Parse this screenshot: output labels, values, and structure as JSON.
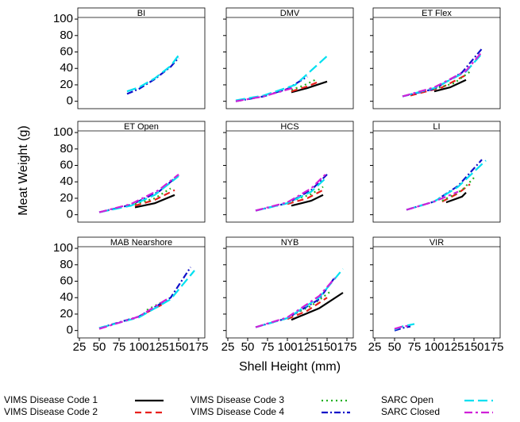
{
  "chart_data": {
    "type": "line",
    "x_label": "Shell Height (mm)",
    "y_label": "Meat Weight (g)",
    "xlim": [
      23,
      183
    ],
    "xticks": [
      25,
      50,
      75,
      100,
      125,
      150,
      175
    ],
    "ylim": [
      -9,
      102
    ],
    "yticks": [
      0,
      20,
      40,
      60,
      80,
      100
    ],
    "legend": [
      {
        "name": "VIMS Disease Code 1",
        "color": "#000000",
        "dash": "solid"
      },
      {
        "name": "VIMS Disease Code 2",
        "color": "#e8201c",
        "dash": "dashed"
      },
      {
        "name": "VIMS Disease Code 3",
        "color": "#22b022",
        "dash": "dotted"
      },
      {
        "name": "VIMS Disease Code 4",
        "color": "#1010c8",
        "dash": "dotdash"
      },
      {
        "name": "SARC Open",
        "color": "#00e0f0",
        "dash": "longdash"
      },
      {
        "name": "SARC Closed",
        "color": "#d020d8",
        "dash": "dashdot"
      }
    ],
    "panels": [
      {
        "title": "BI",
        "series": [
          {
            "name": "VIMS Disease Code 4",
            "x": [
              85,
              100,
              120,
              140,
              150
            ],
            "values": [
              9,
              15,
              27,
              42,
              53
            ]
          },
          {
            "name": "SARC Open",
            "x": [
              85,
              100,
              120,
              140,
              150
            ],
            "values": [
              12,
              17,
              28,
              43,
              56
            ]
          }
        ]
      },
      {
        "title": "DMV",
        "series": [
          {
            "name": "VIMS Disease Code 1",
            "x": [
              105,
              125,
              150
            ],
            "values": [
              11,
              16,
              24
            ]
          },
          {
            "name": "VIMS Disease Code 2",
            "x": [
              105,
              125,
              140
            ],
            "values": [
              12,
              18,
              24
            ]
          },
          {
            "name": "VIMS Disease Code 3",
            "x": [
              105,
              120,
              135
            ],
            "values": [
              14,
              19,
              26
            ]
          },
          {
            "name": "VIMS Disease Code 4",
            "x": [
              35,
              70,
              100,
              125
            ],
            "values": [
              0,
              6,
              15,
              30
            ]
          },
          {
            "name": "SARC Open",
            "x": [
              35,
              70,
              110,
              150
            ],
            "values": [
              1,
              7,
              20,
              55
            ]
          },
          {
            "name": "SARC Closed",
            "x": [
              35,
              70,
              110
            ],
            "values": [
              0,
              6,
              17
            ]
          }
        ]
      },
      {
        "title": "ET Flex",
        "series": [
          {
            "name": "VIMS Disease Code 1",
            "x": [
              100,
              120,
              140
            ],
            "values": [
              12,
              17,
              26
            ]
          },
          {
            "name": "VIMS Disease Code 2",
            "x": [
              70,
              110,
              140
            ],
            "values": [
              7,
              17,
              32
            ]
          },
          {
            "name": "VIMS Disease Code 3",
            "x": [
              100,
              125,
              145
            ],
            "values": [
              15,
              22,
              36
            ]
          },
          {
            "name": "VIMS Disease Code 4",
            "x": [
              60,
              100,
              135,
              160
            ],
            "values": [
              6,
              15,
              35,
              64
            ]
          },
          {
            "name": "SARC Open",
            "x": [
              60,
              100,
              140,
              160
            ],
            "values": [
              6,
              16,
              36,
              58
            ]
          },
          {
            "name": "SARC Closed",
            "x": [
              60,
              100,
              140,
              160
            ],
            "values": [
              6,
              17,
              37,
              60
            ]
          }
        ]
      },
      {
        "title": "ET Open",
        "series": [
          {
            "name": "VIMS Disease Code 1",
            "x": [
              95,
              120,
              145
            ],
            "values": [
              9,
              14,
              24
            ]
          },
          {
            "name": "VIMS Disease Code 2",
            "x": [
              95,
              120,
              145
            ],
            "values": [
              11,
              18,
              30
            ]
          },
          {
            "name": "VIMS Disease Code 3",
            "x": [
              95,
              120,
              140
            ],
            "values": [
              13,
              20,
              32
            ]
          },
          {
            "name": "VIMS Disease Code 4",
            "x": [
              50,
              90,
              125,
              150
            ],
            "values": [
              3,
              12,
              28,
              48
            ]
          },
          {
            "name": "SARC Open",
            "x": [
              50,
              90,
              120,
              150
            ],
            "values": [
              3,
              11,
              24,
              47
            ]
          },
          {
            "name": "SARC Closed",
            "x": [
              50,
              90,
              125,
              150
            ],
            "values": [
              3,
              13,
              30,
              49
            ]
          }
        ]
      },
      {
        "title": "HCS",
        "series": [
          {
            "name": "VIMS Disease Code 1",
            "x": [
              105,
              130,
              145
            ],
            "values": [
              11,
              17,
              24
            ]
          },
          {
            "name": "VIMS Disease Code 2",
            "x": [
              100,
              125,
              145
            ],
            "values": [
              13,
              20,
              30
            ]
          },
          {
            "name": "VIMS Disease Code 3",
            "x": [
              100,
              130,
              145
            ],
            "values": [
              15,
              25,
              34
            ]
          },
          {
            "name": "VIMS Disease Code 4",
            "x": [
              60,
              100,
              130,
              150
            ],
            "values": [
              5,
              14,
              30,
              49
            ]
          },
          {
            "name": "SARC Open",
            "x": [
              60,
              100,
              130,
              150
            ],
            "values": [
              5,
              14,
              28,
              46
            ]
          },
          {
            "name": "SARC Closed",
            "x": [
              60,
              100,
              130,
              150
            ],
            "values": [
              5,
              15,
              32,
              51
            ]
          }
        ]
      },
      {
        "title": "LI",
        "series": [
          {
            "name": "VIMS Disease Code 1",
            "x": [
              115,
              135,
              140
            ],
            "values": [
              15,
              22,
              27
            ]
          },
          {
            "name": "VIMS Disease Code 2",
            "x": [
              110,
              130,
              145
            ],
            "values": [
              16,
              26,
              37
            ]
          },
          {
            "name": "VIMS Disease Code 3",
            "x": [
              110,
              135,
              150
            ],
            "values": [
              17,
              30,
              45
            ]
          },
          {
            "name": "VIMS Disease Code 4",
            "x": [
              65,
              100,
              130,
              160
            ],
            "values": [
              6,
              16,
              35,
              67
            ]
          },
          {
            "name": "SARC Open",
            "x": [
              65,
              100,
              130,
              165
            ],
            "values": [
              6,
              16,
              34,
              66
            ]
          },
          {
            "name": "SARC Closed",
            "x": [
              65,
              100,
              130
            ],
            "values": [
              6,
              16,
              28
            ]
          }
        ]
      },
      {
        "title": "MAB Nearshore",
        "series": [
          {
            "name": "VIMS Disease Code 2",
            "x": [
              110,
              130
            ],
            "values": [
              22,
              32
            ]
          },
          {
            "name": "VIMS Disease Code 3",
            "x": [
              110,
              130
            ],
            "values": [
              25,
              35
            ]
          },
          {
            "name": "VIMS Disease Code 4",
            "x": [
              50,
              100,
              140,
              165
            ],
            "values": [
              3,
              17,
              40,
              77
            ]
          },
          {
            "name": "SARC Open",
            "x": [
              50,
              100,
              140,
              170
            ],
            "values": [
              3,
              16,
              38,
              73
            ]
          },
          {
            "name": "SARC Closed",
            "x": [
              50,
              100,
              135
            ],
            "values": [
              2,
              17,
              38
            ]
          }
        ]
      },
      {
        "title": "NYB",
        "series": [
          {
            "name": "VIMS Disease Code 1",
            "x": [
              105,
              140,
              170
            ],
            "values": [
              13,
              27,
              46
            ]
          },
          {
            "name": "VIMS Disease Code 2",
            "x": [
              100,
              125,
              150
            ],
            "values": [
              14,
              24,
              40
            ]
          },
          {
            "name": "VIMS Disease Code 3",
            "x": [
              100,
              130,
              155
            ],
            "values": [
              16,
              30,
              48
            ]
          },
          {
            "name": "VIMS Disease Code 4",
            "x": [
              60,
              100,
              140,
              160
            ],
            "values": [
              4,
              15,
              38,
              65
            ]
          },
          {
            "name": "SARC Open",
            "x": [
              60,
              100,
              140,
              170
            ],
            "values": [
              4,
              15,
              40,
              75
            ]
          },
          {
            "name": "SARC Closed",
            "x": [
              60,
              100,
              140,
              160
            ],
            "values": [
              4,
              16,
              42,
              64
            ]
          }
        ]
      },
      {
        "title": "VIR",
        "series": [
          {
            "name": "VIMS Disease Code 4",
            "x": [
              50,
              60,
              70
            ],
            "values": [
              0,
              3,
              5
            ]
          },
          {
            "name": "SARC Open",
            "x": [
              50,
              60,
              75
            ],
            "values": [
              1,
              5,
              8
            ]
          },
          {
            "name": "SARC Closed",
            "x": [
              50,
              60,
              70
            ],
            "values": [
              2,
              5,
              6
            ]
          }
        ]
      }
    ]
  }
}
